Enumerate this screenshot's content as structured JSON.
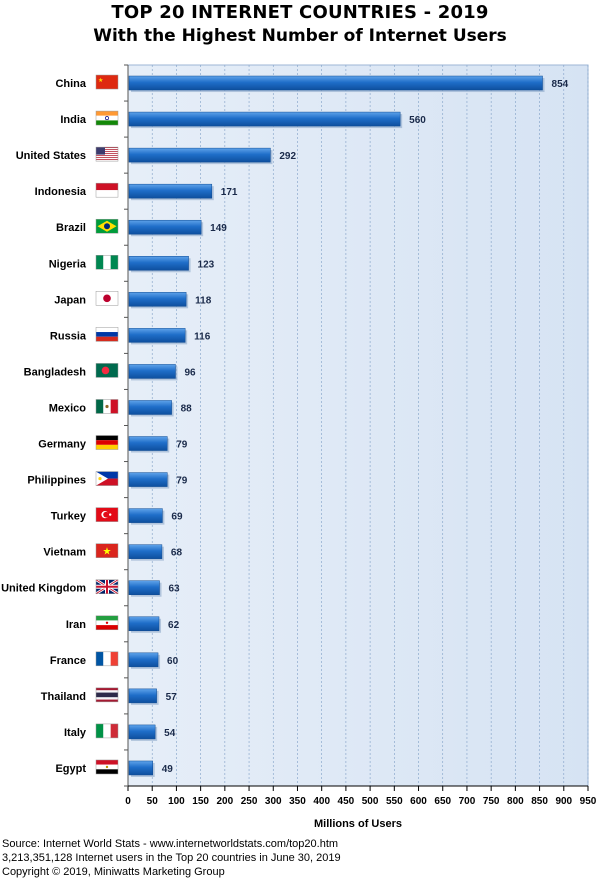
{
  "chart_data": {
    "type": "bar",
    "orientation": "horizontal",
    "title": "TOP 20 INTERNET COUNTRIES  - 2019",
    "subtitle": "With the Highest Number of Internet Users",
    "xlabel": "Millions of Users",
    "ylabel": "",
    "xlim": [
      0,
      950
    ],
    "x_ticks": [
      0,
      50,
      100,
      150,
      200,
      250,
      300,
      350,
      400,
      450,
      500,
      550,
      600,
      650,
      700,
      750,
      800,
      850,
      900,
      950
    ],
    "grid": true,
    "legend": "none",
    "categories": [
      "China",
      "India",
      "United States",
      "Indonesia",
      "Brazil",
      "Nigeria",
      "Japan",
      "Russia",
      "Bangladesh",
      "Mexico",
      "Germany",
      "Philippines",
      "Turkey",
      "Vietnam",
      "United Kingdom",
      "Iran",
      "France",
      "Thailand",
      "Italy",
      "Egypt"
    ],
    "values": [
      854,
      560,
      292,
      171,
      149,
      123,
      118,
      116,
      96,
      88,
      79,
      79,
      69,
      68,
      63,
      62,
      60,
      57,
      54,
      49
    ],
    "flag_icons": [
      "china-flag-icon",
      "india-flag-icon",
      "usa-flag-icon",
      "indonesia-flag-icon",
      "brazil-flag-icon",
      "nigeria-flag-icon",
      "japan-flag-icon",
      "russia-flag-icon",
      "bangladesh-flag-icon",
      "mexico-flag-icon",
      "germany-flag-icon",
      "philippines-flag-icon",
      "turkey-flag-icon",
      "vietnam-flag-icon",
      "uk-flag-icon",
      "iran-flag-icon",
      "france-flag-icon",
      "thailand-flag-icon",
      "italy-flag-icon",
      "egypt-flag-icon"
    ],
    "colors": {
      "bar": "#1f6ec9",
      "bar_dark": "#0e4f9e",
      "bar_light": "#5fa3ea",
      "plot_background": "#dde8f5",
      "gridline": "#7f9fc6",
      "value_label": "#1a2a4a"
    }
  },
  "footer": {
    "source": "Source: Internet World Stats  -  www.internetworldstats.com/top20.htm",
    "note": "3,213,351,128 Internet users in the Top 20 countries in June 30, 2019",
    "copyright": "Copyright © 2019, Miniwatts Marketing Group"
  }
}
